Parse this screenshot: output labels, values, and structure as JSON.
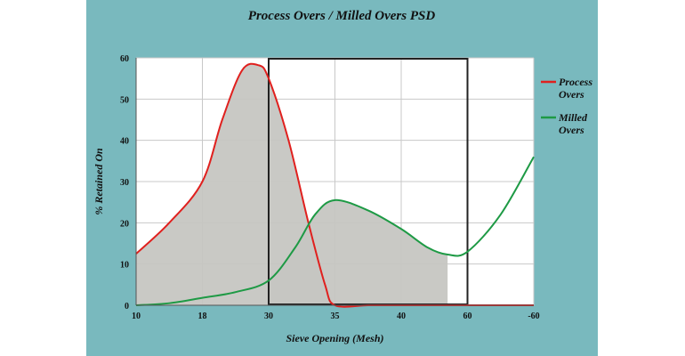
{
  "chart_data": {
    "type": "area",
    "title": "Process Overs / Milled Overs PSD",
    "xlabel": "Sieve Opening (Mesh)",
    "ylabel": "% Retained On",
    "x_ticks": [
      "10",
      "18",
      "30",
      "35",
      "40",
      "60",
      "-60"
    ],
    "ylim": [
      0,
      60
    ],
    "y_ticks": [
      "0",
      "10",
      "20",
      "30",
      "40",
      "50",
      "60"
    ],
    "grid": true,
    "legend_position": "right",
    "highlight_box": {
      "x_from": "30",
      "x_to": "60"
    },
    "series": [
      {
        "name": "Process Overs",
        "color": "#e0201e",
        "fill": "#c6c6c2",
        "x": [
          0,
          0.5,
          1,
          1.3,
          1.6,
          1.85,
          2.0,
          2.3,
          2.6,
          2.85,
          3.0,
          3.5,
          4,
          5,
          6
        ],
        "y": [
          12.5,
          20,
          30,
          45,
          57,
          58.2,
          55,
          40,
          20,
          5,
          0,
          0,
          0,
          0,
          0
        ]
      },
      {
        "name": "Milled Overs",
        "color": "#1e9a45",
        "fill": "#c6c6c2",
        "x": [
          0,
          0.5,
          1,
          1.5,
          2.0,
          2.4,
          2.7,
          3.0,
          3.5,
          4.0,
          4.4,
          4.7,
          5,
          5.5,
          6
        ],
        "y": [
          0,
          0.5,
          1.8,
          3.2,
          6,
          14,
          22,
          25.5,
          23,
          18.5,
          14,
          12.3,
          13,
          22,
          36
        ]
      }
    ]
  }
}
